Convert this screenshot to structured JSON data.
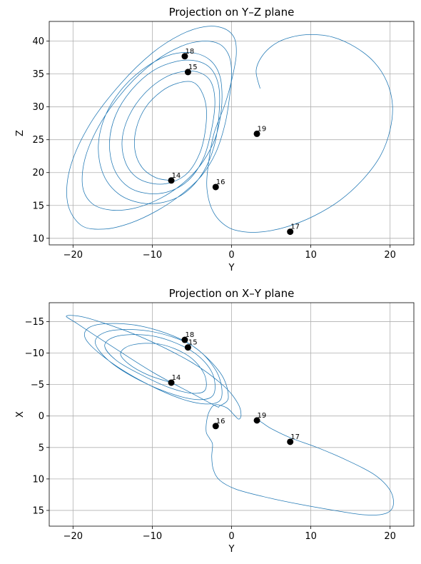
{
  "chart_data": [
    {
      "type": "line",
      "title": "Projection on Y–Z plane",
      "xlabel": "Y",
      "ylabel": "Z",
      "xlim": [
        -23,
        23
      ],
      "ylim": [
        9,
        43
      ],
      "y_inverted": false,
      "grid": true,
      "xticks": [
        -20,
        -10,
        0,
        10,
        20
      ],
      "xtick_labels": [
        "−20",
        "−10",
        "0",
        "10",
        "20"
      ],
      "yticks": [
        10,
        15,
        20,
        25,
        30,
        35,
        40
      ],
      "ytick_labels": [
        "10",
        "15",
        "20",
        "25",
        "30",
        "35",
        "40"
      ],
      "series_color": "#1f77b4",
      "marker_color": "#000000",
      "trajectory_x": [
        -7.6,
        -9.5,
        -11.3,
        -12.2,
        -12.0,
        -10.8,
        -8.8,
        -6.8,
        -5.0,
        -3.9,
        -3.2,
        -3.3,
        -4.0,
        -5.5,
        -7.6,
        -9.8,
        -12.0,
        -13.4,
        -13.8,
        -12.9,
        -11.0,
        -8.5,
        -6.0,
        -4.0,
        -2.6,
        -2.1,
        -2.5,
        -3.5,
        -5.3,
        -7.7,
        -10.4,
        -13.0,
        -14.8,
        -15.4,
        -14.6,
        -12.6,
        -9.9,
        -7.0,
        -4.5,
        -2.6,
        -1.6,
        -1.6,
        -2.2,
        -3.6,
        -5.8,
        -8.5,
        -11.5,
        -14.3,
        -16.2,
        -16.8,
        -15.8,
        -13.5,
        -10.5,
        -7.5,
        -4.8,
        -2.7,
        -1.5,
        -1.2,
        -1.5,
        -2.3,
        -4.0,
        -6.3,
        -9.1,
        -12.2,
        -15.2,
        -17.6,
        -18.8,
        -18.4,
        -16.4,
        -13.2,
        -9.7,
        -6.4,
        -3.7,
        -1.6,
        -0.4,
        0.0,
        -0.2,
        -0.8,
        -2.0,
        -3.8,
        -6.3,
        -9.4,
        -12.8,
        -16.1,
        -19.0,
        -20.7,
        -20.3,
        -17.8,
        -14.0,
        -10.0,
        -6.4,
        -3.4,
        -1.1,
        0.3,
        0.6,
        0.1,
        -0.8,
        -2.2,
        -2.9,
        -3.1,
        -2.3,
        -0.6,
        1.5,
        4.0,
        7.1,
        10.4,
        13.7,
        16.6,
        18.8,
        20.0,
        20.3,
        19.6,
        18.0,
        15.6,
        12.8,
        10.0,
        7.5,
        5.5,
        3.9,
        3.1,
        3.6
      ],
      "trajectory_y": [
        18.8,
        19.2,
        20.8,
        23.5,
        26.8,
        30.0,
        32.4,
        33.6,
        33.8,
        32.6,
        30.0,
        26.5,
        23.0,
        20.0,
        18.5,
        18.3,
        19.3,
        21.6,
        25.0,
        28.7,
        32.0,
        34.4,
        35.4,
        35.2,
        33.8,
        30.8,
        26.7,
        22.3,
        19.0,
        17.2,
        16.8,
        17.8,
        20.5,
        24.5,
        28.8,
        32.6,
        35.5,
        36.9,
        37.0,
        35.8,
        33.0,
        28.6,
        24.0,
        20.0,
        17.0,
        15.5,
        15.4,
        16.8,
        19.8,
        24.2,
        29.0,
        33.2,
        36.3,
        38.0,
        38.2,
        37.1,
        34.8,
        31.5,
        27.8,
        24.5,
        21.0,
        18.2,
        16.0,
        14.6,
        14.3,
        15.3,
        18.0,
        22.5,
        27.8,
        33.0,
        36.9,
        39.2,
        40.0,
        39.6,
        38.0,
        35.5,
        32.0,
        27.5,
        23.0,
        19.5,
        16.7,
        14.2,
        12.3,
        11.4,
        12.0,
        15.5,
        21.0,
        27.5,
        33.5,
        38.2,
        41.0,
        42.2,
        42.0,
        40.6,
        38.0,
        34.5,
        30.5,
        26.0,
        21.5,
        17.5,
        14.0,
        11.8,
        11.0,
        11.0,
        11.8,
        13.4,
        15.8,
        19.0,
        22.6,
        26.5,
        30.3,
        33.8,
        36.8,
        39.1,
        40.6,
        41.0,
        40.6,
        39.6,
        37.8,
        35.5,
        32.8
      ],
      "points": [
        {
          "label": "14",
          "x": -7.6,
          "y": 18.8
        },
        {
          "label": "15",
          "x": -5.5,
          "y": 35.3
        },
        {
          "label": "16",
          "x": -2.0,
          "y": 17.8
        },
        {
          "label": "17",
          "x": 7.4,
          "y": 11.0
        },
        {
          "label": "18",
          "x": -5.9,
          "y": 37.7
        },
        {
          "label": "19",
          "x": 3.2,
          "y": 25.9
        }
      ]
    },
    {
      "type": "line",
      "title": "Projection on X–Y plane",
      "xlabel": "Y",
      "ylabel": "X",
      "xlim": [
        -23,
        23
      ],
      "ylim": [
        17.5,
        -18
      ],
      "y_inverted": true,
      "grid": true,
      "xticks": [
        -20,
        -10,
        0,
        10,
        20
      ],
      "xtick_labels": [
        "−20",
        "−10",
        "0",
        "10",
        "20"
      ],
      "yticks": [
        -15,
        -10,
        -5,
        0,
        5,
        10,
        15
      ],
      "ytick_labels": [
        "−15",
        "−10",
        "−5",
        "0",
        "5",
        "10",
        "15"
      ],
      "series_color": "#1f77b4",
      "marker_color": "#000000",
      "trajectory_x": [
        -7.6,
        -10.5,
        -13.0,
        -14.0,
        -12.5,
        -9.0,
        -5.5,
        -3.5,
        -3.3,
        -4.8,
        -7.6,
        -11.0,
        -14.5,
        -16.0,
        -14.0,
        -9.5,
        -5.0,
        -2.5,
        -2.2,
        -3.8,
        -7.0,
        -11.5,
        -15.5,
        -17.2,
        -15.0,
        -10.0,
        -5.0,
        -2.0,
        -1.2,
        -2.2,
        -5.5,
        -10.5,
        -15.5,
        -18.5,
        -17.0,
        -11.5,
        -5.5,
        -1.5,
        -0.4,
        -1.5,
        -2.0,
        -5.0,
        -10.0,
        -15.5,
        -19.5,
        -20.8,
        -18.0,
        -11.5,
        -5.0,
        -1.0,
        0.8,
        1.2,
        0.9,
        0.3,
        -0.6,
        -2.0,
        -2.7,
        -3.1,
        -3.2,
        -2.8,
        -2.4,
        -2.5,
        -2.3,
        -1.5,
        0.5,
        4.0,
        8.5,
        13.0,
        16.8,
        19.4,
        20.4,
        20.0,
        18.0,
        14.5,
        10.8,
        7.5,
        5.0,
        3.8,
        3.2,
        3.0
      ],
      "trajectory_y": [
        -5.3,
        -6.5,
        -8.3,
        -10.0,
        -11.3,
        -11.4,
        -9.6,
        -6.8,
        -4.2,
        -3.6,
        -4.4,
        -6.3,
        -8.8,
        -11.3,
        -12.8,
        -12.6,
        -10.3,
        -7.0,
        -3.6,
        -2.6,
        -3.3,
        -5.6,
        -8.8,
        -11.9,
        -13.6,
        -13.4,
        -11.2,
        -7.3,
        -3.5,
        -2.0,
        -2.4,
        -5.0,
        -8.8,
        -12.5,
        -14.5,
        -14.3,
        -11.6,
        -7.0,
        -3.0,
        -1.6,
        -1.6,
        -3.6,
        -7.0,
        -11.4,
        -14.7,
        -15.9,
        -15.5,
        -12.6,
        -8.5,
        -4.8,
        -2.0,
        -0.2,
        0.5,
        -0.2,
        -1.3,
        -1.8,
        -1.0,
        0.5,
        2.5,
        3.5,
        4.5,
        6.5,
        8.5,
        10.2,
        11.6,
        12.8,
        14.0,
        15.0,
        15.7,
        15.5,
        14.2,
        11.8,
        9.3,
        7.0,
        5.0,
        3.5,
        2.0,
        1.0,
        0.6,
        0.4
      ],
      "points": [
        {
          "label": "14",
          "x": -7.6,
          "y": -5.3
        },
        {
          "label": "15",
          "x": -5.5,
          "y": -10.9
        },
        {
          "label": "16",
          "x": -2.0,
          "y": 1.6
        },
        {
          "label": "17",
          "x": 7.4,
          "y": 4.1
        },
        {
          "label": "18",
          "x": -5.9,
          "y": -12.1
        },
        {
          "label": "19",
          "x": 3.2,
          "y": 0.7
        }
      ]
    }
  ]
}
